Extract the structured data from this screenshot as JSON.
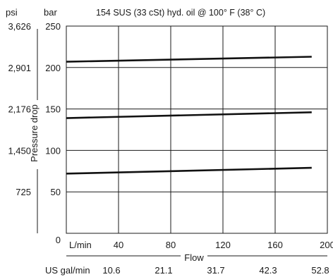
{
  "chart_data": {
    "type": "line",
    "title": "154 SUS (33 cSt) hyd. oil @ 100° F (38° C)",
    "xlabel": "Flow",
    "ylabel": "Pressure drop",
    "x_unit_primary": "L/min",
    "x_unit_secondary": "US gal/min",
    "y_unit_primary": "bar",
    "y_unit_secondary": "psi",
    "xlim": [
      0,
      200
    ],
    "ylim": [
      0,
      250
    ],
    "x_ticks": [
      0,
      40,
      80,
      120,
      160,
      200
    ],
    "x_tick_labels": [
      "0",
      "40",
      "80",
      "120",
      "160",
      "200"
    ],
    "x_secondary_tick_labels": [
      "10.6",
      "21.1",
      "31.7",
      "42.3",
      "52.8"
    ],
    "y_ticks": [
      50,
      100,
      150,
      200,
      250
    ],
    "y_tick_labels": [
      "50",
      "100",
      "150",
      "200",
      "250"
    ],
    "y_secondary_tick_labels": [
      "725",
      "1,450",
      "2,176",
      "2,901",
      "3,626"
    ],
    "grid": true,
    "series": [
      {
        "x": [
          0,
          188
        ],
        "y": [
          207,
          213
        ]
      },
      {
        "x": [
          0,
          188
        ],
        "y": [
          139,
          146
        ]
      },
      {
        "x": [
          0,
          188
        ],
        "y": [
          72,
          79
        ]
      }
    ]
  }
}
